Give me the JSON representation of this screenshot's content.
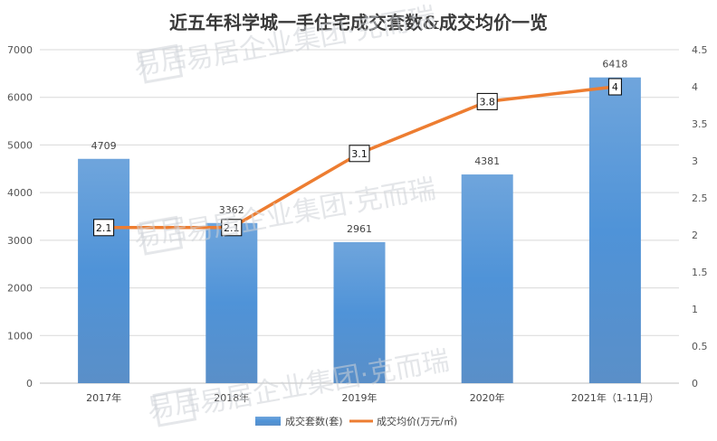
{
  "chart_data": {
    "type": "bar",
    "title": "近五年科学城一手住宅成交套数&成交均价一览",
    "categories": [
      "2017年",
      "2018年",
      "2019年",
      "2020年",
      "2021年（1-11月）"
    ],
    "series": [
      {
        "name": "成交套数(套)",
        "type": "bar",
        "axis": "left",
        "values": [
          4709,
          3362,
          2961,
          4381,
          6418
        ],
        "labels": [
          "4709",
          "3362",
          "2961",
          "4381",
          "6418"
        ],
        "color": "#5b9bd5"
      },
      {
        "name": "成交均价(万元/㎡)",
        "type": "line",
        "axis": "right",
        "values": [
          2.1,
          2.1,
          3.1,
          3.8,
          4.0
        ],
        "labels": [
          "2.1",
          "2.1",
          "3.1",
          "3.8",
          "4"
        ],
        "color": "#ed7d31"
      }
    ],
    "y_left": {
      "min": 0,
      "max": 7000,
      "ticks": [
        "0",
        "1000",
        "2000",
        "3000",
        "4000",
        "5000",
        "6000",
        "7000"
      ]
    },
    "y_right": {
      "min": 0,
      "max": 4.5,
      "ticks": [
        "0",
        "0.5",
        "1",
        "1.5",
        "2",
        "2.5",
        "3",
        "3.5",
        "4",
        "4.5"
      ]
    },
    "grid": true,
    "legend": "bottom"
  },
  "watermark": {
    "text": "易居企业集团·克而瑞",
    "logo": "易居"
  }
}
